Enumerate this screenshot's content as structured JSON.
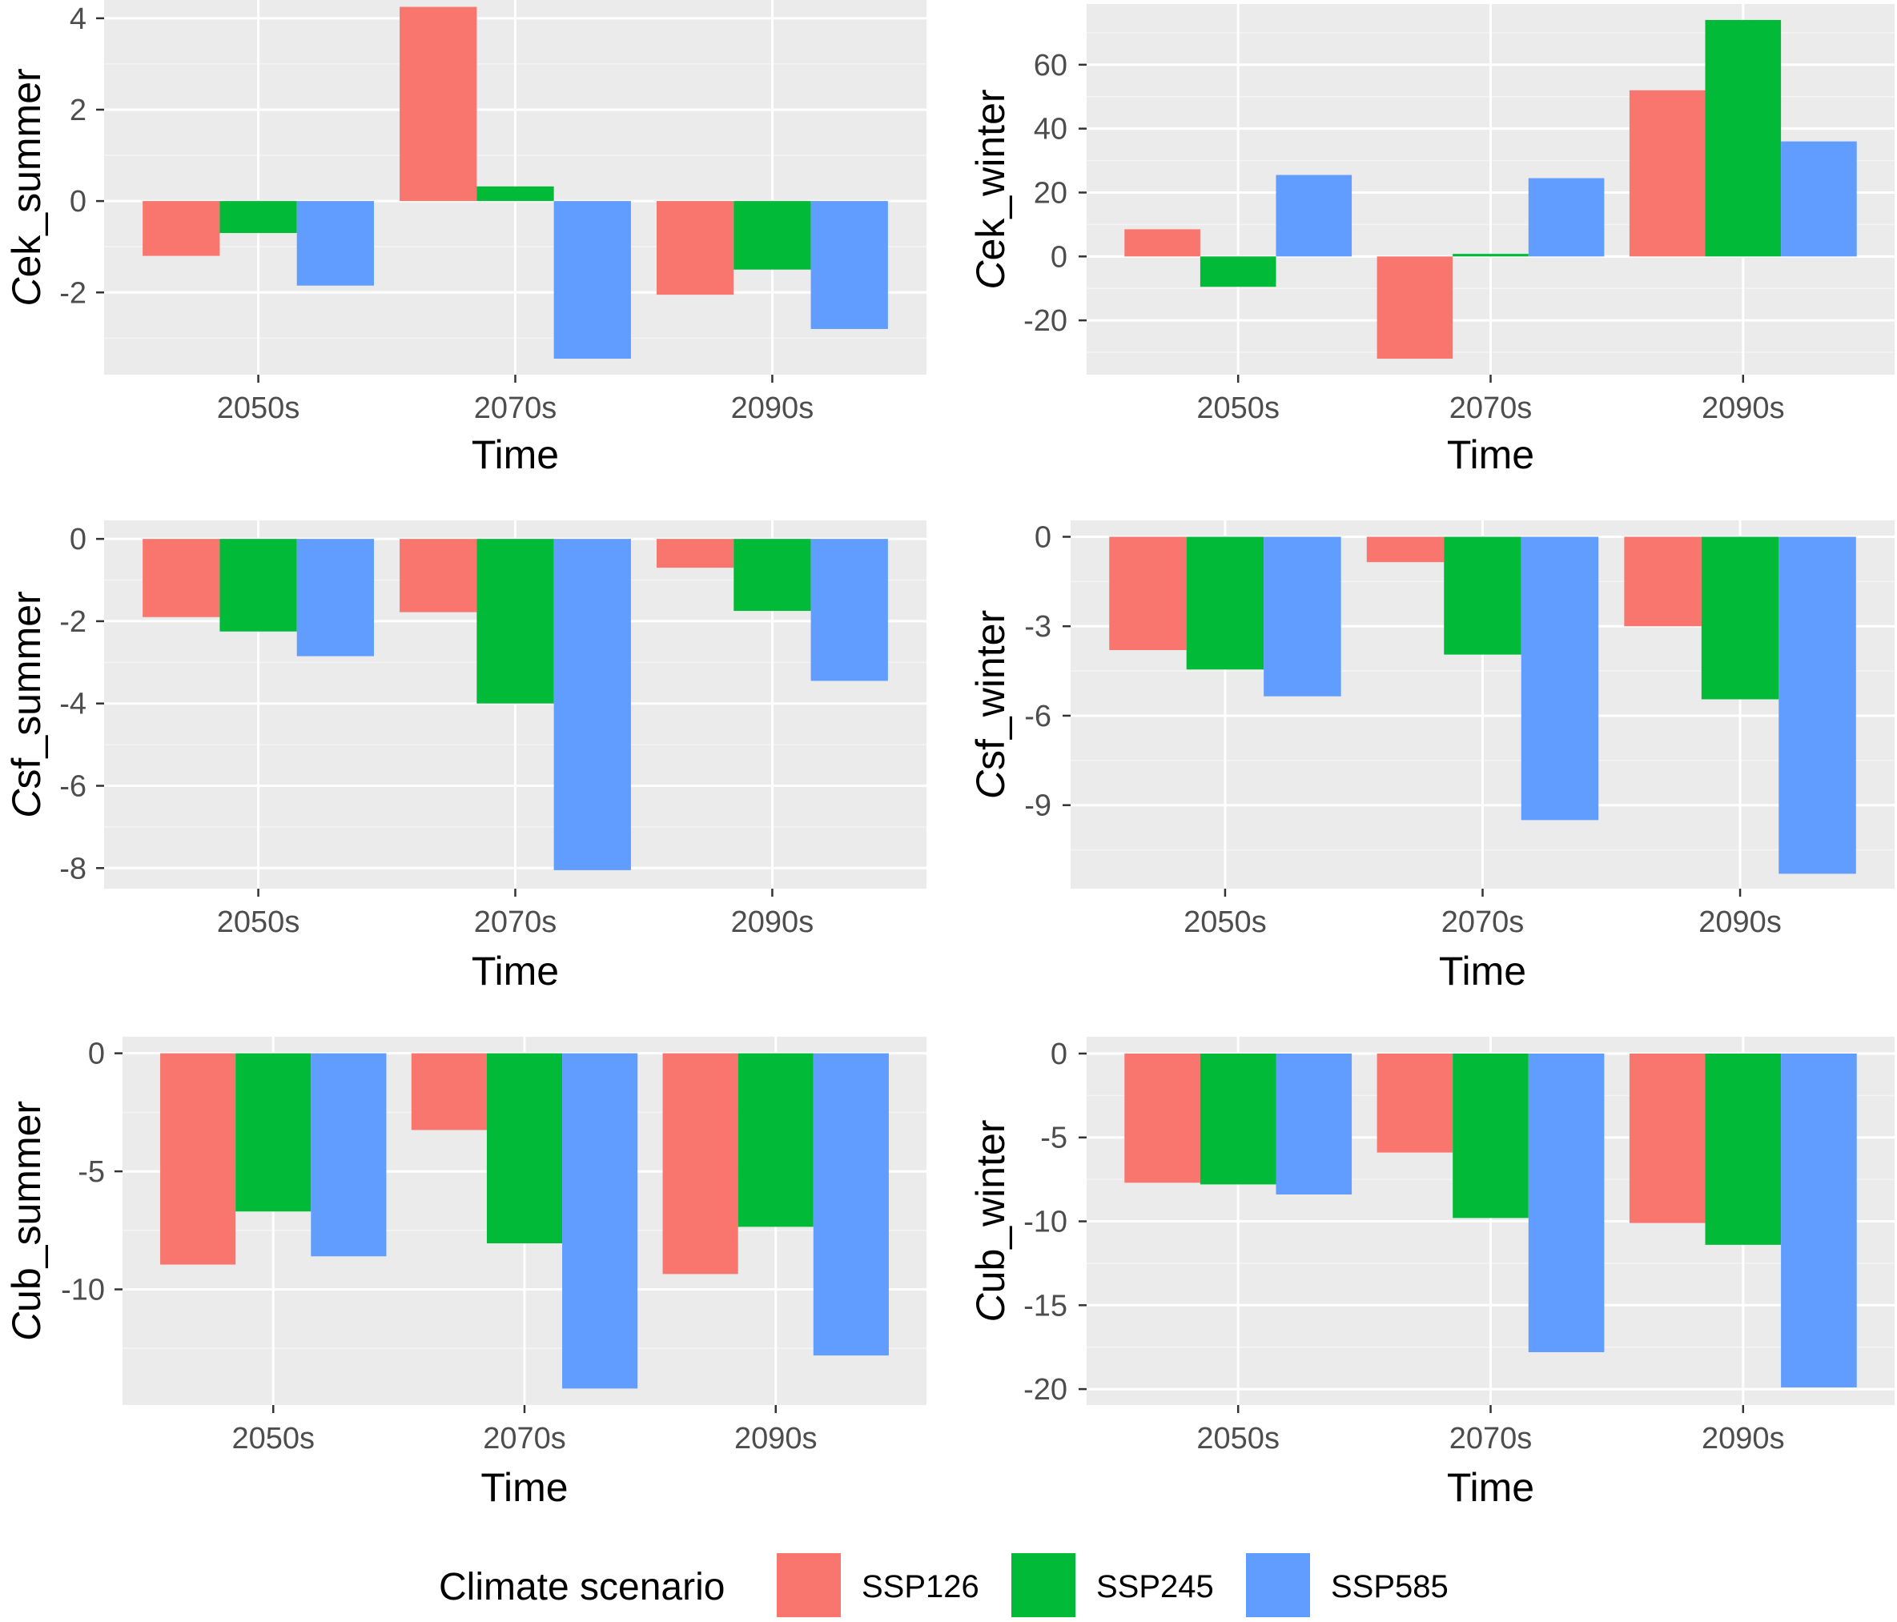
{
  "legend": {
    "title": "Climate  scenario",
    "items": [
      {
        "label": "SSP126",
        "color": "#F8766D"
      },
      {
        "label": "SSP245",
        "color": "#00BA38"
      },
      {
        "label": "SSP585",
        "color": "#619CFF"
      }
    ]
  },
  "colors": {
    "panel_bg": "#EBEBEB",
    "grid_major": "#FFFFFF",
    "grid_minor": "#F4F4F4",
    "tick_text": "#4D4D4D",
    "tick_mark": "#333333"
  },
  "chart_data": [
    {
      "type": "bar",
      "ylabel_italic": "C",
      "ylabel_rest": "ek_summer",
      "xlabel": "Time",
      "categories": [
        "2050s",
        "2070s",
        "2090s"
      ],
      "yticks": [
        -2,
        0,
        2,
        4
      ],
      "ytick_labels": [
        "-2",
        "0",
        "2",
        "4"
      ],
      "ylim": [
        -3.8,
        4.4
      ],
      "series": [
        {
          "name": "SSP126",
          "values": [
            -1.2,
            4.25,
            -2.05
          ]
        },
        {
          "name": "SSP245",
          "values": [
            -0.7,
            0.32,
            -1.5
          ]
        },
        {
          "name": "SSP585",
          "values": [
            -1.85,
            -3.45,
            -2.8
          ]
        }
      ]
    },
    {
      "type": "bar",
      "ylabel_italic": "C",
      "ylabel_rest": "ek_winter",
      "xlabel": "Time",
      "categories": [
        "2050s",
        "2070s",
        "2090s"
      ],
      "yticks": [
        -20,
        0,
        20,
        40,
        60
      ],
      "ytick_labels": [
        "-20",
        "0",
        "20",
        "40",
        "60"
      ],
      "ylim": [
        -37,
        79
      ],
      "series": [
        {
          "name": "SSP126",
          "values": [
            8.5,
            -32,
            52
          ]
        },
        {
          "name": "SSP245",
          "values": [
            -9.5,
            0.8,
            74
          ]
        },
        {
          "name": "SSP585",
          "values": [
            25.5,
            24.5,
            36
          ]
        }
      ]
    },
    {
      "type": "bar",
      "ylabel_italic": "C",
      "ylabel_rest": "sf_summer",
      "xlabel": "Time",
      "categories": [
        "2050s",
        "2070s",
        "2090s"
      ],
      "yticks": [
        -8,
        -6,
        -4,
        -2,
        0
      ],
      "ytick_labels": [
        "-8",
        "-6",
        "-4",
        "-2",
        "0"
      ],
      "ylim": [
        -8.5,
        0.45
      ],
      "series": [
        {
          "name": "SSP126",
          "values": [
            -1.9,
            -1.78,
            -0.7
          ]
        },
        {
          "name": "SSP245",
          "values": [
            -2.25,
            -4.0,
            -1.75
          ]
        },
        {
          "name": "SSP585",
          "values": [
            -2.85,
            -8.05,
            -3.45
          ]
        }
      ]
    },
    {
      "type": "bar",
      "ylabel_italic": "C",
      "ylabel_rest": "sf_winter",
      "xlabel": "Time",
      "categories": [
        "2050s",
        "2070s",
        "2090s"
      ],
      "yticks": [
        -9,
        -6,
        -3,
        0
      ],
      "ytick_labels": [
        "-9",
        "-6",
        "-3",
        "0"
      ],
      "ylim": [
        -11.8,
        0.55
      ],
      "series": [
        {
          "name": "SSP126",
          "values": [
            -3.8,
            -0.85,
            -3.0
          ]
        },
        {
          "name": "SSP245",
          "values": [
            -4.45,
            -3.95,
            -5.45
          ]
        },
        {
          "name": "SSP585",
          "values": [
            -5.35,
            -9.5,
            -11.3
          ]
        }
      ]
    },
    {
      "type": "bar",
      "ylabel_italic": "C",
      "ylabel_rest": "ub_summer",
      "xlabel": "Time",
      "categories": [
        "2050s",
        "2070s",
        "2090s"
      ],
      "yticks": [
        -10,
        -5,
        0
      ],
      "ytick_labels": [
        "-10",
        "-5",
        "0"
      ],
      "ylim": [
        -14.9,
        0.7
      ],
      "series": [
        {
          "name": "SSP126",
          "values": [
            -8.95,
            -3.25,
            -9.35
          ]
        },
        {
          "name": "SSP245",
          "values": [
            -6.7,
            -8.05,
            -7.35
          ]
        },
        {
          "name": "SSP585",
          "values": [
            -8.6,
            -14.2,
            -12.8
          ]
        }
      ]
    },
    {
      "type": "bar",
      "ylabel_italic": "C",
      "ylabel_rest": "ub_winter",
      "xlabel": "Time",
      "categories": [
        "2050s",
        "2070s",
        "2090s"
      ],
      "yticks": [
        -20,
        -15,
        -10,
        -5,
        0
      ],
      "ytick_labels": [
        "-20",
        "-15",
        "-10",
        "-5",
        "0"
      ],
      "ylim": [
        -20.95,
        1.0
      ],
      "series": [
        {
          "name": "SSP126",
          "values": [
            -7.7,
            -5.9,
            -10.1
          ]
        },
        {
          "name": "SSP245",
          "values": [
            -7.8,
            -9.8,
            -11.4
          ]
        },
        {
          "name": "SSP585",
          "values": [
            -8.4,
            -17.8,
            -19.9
          ]
        }
      ]
    }
  ]
}
